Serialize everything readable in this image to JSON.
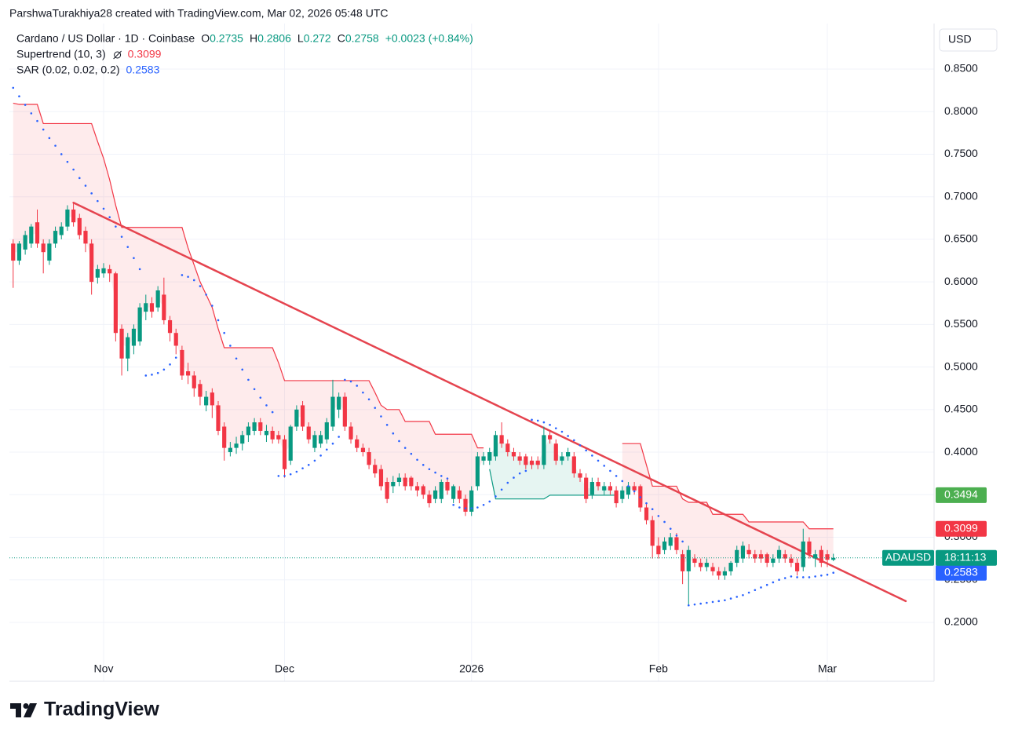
{
  "header": {
    "attribution": "ParshwaTurakhiya28 created with TradingView.com, Mar 02, 2026 05:48 UTC"
  },
  "brand": "TradingView",
  "chart_data": {
    "type": "candlestick",
    "currency": "USD",
    "legend": {
      "symbol": "Cardano / US Dollar · 1D · Coinbase",
      "ohlc": [
        {
          "label": "O",
          "value": 0.2735
        },
        {
          "label": "H",
          "value": 0.2806
        },
        {
          "label": "L",
          "value": 0.272
        },
        {
          "label": "C",
          "value": 0.2758
        }
      ],
      "change": "+0.0023 (+0.84%)",
      "value_color": "#089981"
    },
    "up_color": "#089981",
    "down_color": "#f23645",
    "xlim": [
      -0.62,
      152.7
    ],
    "xticks": [
      {
        "value": 15,
        "label": "Nov"
      },
      {
        "value": 45,
        "label": "Dec"
      },
      {
        "value": 76,
        "label": "2026"
      },
      {
        "value": 107,
        "label": "Feb"
      },
      {
        "value": 135,
        "label": "Mar"
      }
    ],
    "ylim": [
      0.1308,
      0.9035
    ],
    "yticks": [
      {
        "value": 0.2,
        "label": "0.2000"
      },
      {
        "value": 0.25,
        "label": "0.2500"
      },
      {
        "value": 0.3,
        "label": "0.3000"
      },
      {
        "value": 0.35,
        "label": "0.3500"
      },
      {
        "value": 0.4,
        "label": "0.4000"
      },
      {
        "value": 0.45,
        "label": "0.4500"
      },
      {
        "value": 0.5,
        "label": "0.5000"
      },
      {
        "value": 0.55,
        "label": "0.5500"
      },
      {
        "value": 0.6,
        "label": "0.6000"
      },
      {
        "value": 0.65,
        "label": "0.6500"
      },
      {
        "value": 0.7,
        "label": "0.7000"
      },
      {
        "value": 0.75,
        "label": "0.7500"
      },
      {
        "value": 0.8,
        "label": "0.8000"
      },
      {
        "value": 0.85,
        "label": "0.8500"
      }
    ],
    "grid": true,
    "open": [
      0.645,
      0.625,
      0.638,
      0.645,
      0.67,
      0.645,
      0.625,
      0.645,
      0.655,
      0.665,
      0.685,
      0.675,
      0.66,
      0.645,
      0.605,
      0.61,
      0.615,
      0.61,
      0.545,
      0.51,
      0.525,
      0.53,
      0.565,
      0.575,
      0.57,
      0.585,
      0.555,
      0.54,
      0.52,
      0.495,
      0.49,
      0.48,
      0.455,
      0.47,
      0.455,
      0.43,
      0.4,
      0.405,
      0.41,
      0.42,
      0.425,
      0.435,
      0.42,
      0.425,
      0.42,
      0.415,
      0.39,
      0.43,
      0.455,
      0.43,
      0.405,
      0.41,
      0.415,
      0.43,
      0.45,
      0.465,
      0.43,
      0.415,
      0.405,
      0.4,
      0.385,
      0.38,
      0.365,
      0.36,
      0.365,
      0.37,
      0.37,
      0.36,
      0.36,
      0.35,
      0.345,
      0.345,
      0.365,
      0.345,
      0.355,
      0.345,
      0.33,
      0.36,
      0.39,
      0.39,
      0.395,
      0.42,
      0.41,
      0.4,
      0.395,
      0.395,
      0.39,
      0.39,
      0.385,
      0.42,
      0.41,
      0.39,
      0.395,
      0.395,
      0.375,
      0.37,
      0.35,
      0.365,
      0.355,
      0.36,
      0.355,
      0.345,
      0.35,
      0.36,
      0.36,
      0.335,
      0.32,
      0.29,
      0.285,
      0.29,
      0.3,
      0.28,
      0.26,
      0.275,
      0.27,
      0.265,
      0.265,
      0.26,
      0.255,
      0.26,
      0.27,
      0.275,
      0.285,
      0.28,
      0.28,
      0.28,
      0.27,
      0.275,
      0.28,
      0.275,
      0.27,
      0.265,
      0.295,
      0.275,
      0.285,
      0.28,
      0.2735
    ],
    "high": [
      0.65,
      0.648,
      0.66,
      0.668,
      0.685,
      0.65,
      0.65,
      0.665,
      0.67,
      0.69,
      0.692,
      0.68,
      0.665,
      0.65,
      0.62,
      0.622,
      0.62,
      0.612,
      0.55,
      0.54,
      0.55,
      0.575,
      0.585,
      0.582,
      0.595,
      0.605,
      0.56,
      0.545,
      0.525,
      0.505,
      0.495,
      0.485,
      0.472,
      0.475,
      0.46,
      0.435,
      0.412,
      0.418,
      0.425,
      0.435,
      0.44,
      0.44,
      0.432,
      0.43,
      0.425,
      0.42,
      0.432,
      0.455,
      0.46,
      0.435,
      0.425,
      0.425,
      0.44,
      0.485,
      0.47,
      0.47,
      0.435,
      0.42,
      0.41,
      0.405,
      0.392,
      0.385,
      0.37,
      0.372,
      0.375,
      0.375,
      0.372,
      0.365,
      0.362,
      0.355,
      0.36,
      0.368,
      0.37,
      0.362,
      0.36,
      0.35,
      0.36,
      0.4,
      0.4,
      0.405,
      0.425,
      0.435,
      0.415,
      0.405,
      0.4,
      0.398,
      0.395,
      0.395,
      0.43,
      0.425,
      0.415,
      0.4,
      0.405,
      0.4,
      0.38,
      0.375,
      0.37,
      0.37,
      0.365,
      0.365,
      0.36,
      0.36,
      0.365,
      0.365,
      0.362,
      0.34,
      0.325,
      0.3,
      0.3,
      0.305,
      0.305,
      0.285,
      0.29,
      0.28,
      0.275,
      0.275,
      0.27,
      0.265,
      0.265,
      0.272,
      0.29,
      0.295,
      0.292,
      0.285,
      0.285,
      0.282,
      0.28,
      0.29,
      0.285,
      0.28,
      0.275,
      0.31,
      0.3,
      0.285,
      0.29,
      0.285,
      0.2806
    ],
    "low": [
      0.593,
      0.62,
      0.632,
      0.64,
      0.64,
      0.61,
      0.62,
      0.64,
      0.65,
      0.66,
      0.665,
      0.65,
      0.635,
      0.585,
      0.598,
      0.605,
      0.6,
      0.53,
      0.49,
      0.495,
      0.515,
      0.525,
      0.555,
      0.558,
      0.565,
      0.55,
      0.53,
      0.515,
      0.485,
      0.48,
      0.465,
      0.455,
      0.448,
      0.44,
      0.42,
      0.39,
      0.395,
      0.398,
      0.402,
      0.412,
      0.42,
      0.42,
      0.412,
      0.41,
      0.41,
      0.37,
      0.385,
      0.425,
      0.425,
      0.41,
      0.4,
      0.405,
      0.41,
      0.425,
      0.44,
      0.425,
      0.41,
      0.4,
      0.395,
      0.38,
      0.37,
      0.355,
      0.34,
      0.352,
      0.36,
      0.355,
      0.355,
      0.348,
      0.345,
      0.335,
      0.34,
      0.34,
      0.35,
      0.34,
      0.34,
      0.325,
      0.325,
      0.355,
      0.385,
      0.385,
      0.39,
      0.405,
      0.395,
      0.39,
      0.385,
      0.38,
      0.38,
      0.38,
      0.38,
      0.41,
      0.385,
      0.385,
      0.39,
      0.37,
      0.365,
      0.34,
      0.345,
      0.355,
      0.35,
      0.35,
      0.335,
      0.34,
      0.345,
      0.35,
      0.33,
      0.315,
      0.275,
      0.275,
      0.28,
      0.285,
      0.28,
      0.245,
      0.22,
      0.265,
      0.26,
      0.26,
      0.255,
      0.25,
      0.25,
      0.255,
      0.265,
      0.27,
      0.275,
      0.27,
      0.27,
      0.265,
      0.265,
      0.27,
      0.27,
      0.265,
      0.255,
      0.26,
      0.275,
      0.265,
      0.265,
      0.265,
      0.272
    ],
    "close": [
      0.625,
      0.645,
      0.655,
      0.665,
      0.645,
      0.635,
      0.645,
      0.66,
      0.665,
      0.685,
      0.67,
      0.655,
      0.645,
      0.6,
      0.615,
      0.616,
      0.61,
      0.54,
      0.51,
      0.535,
      0.545,
      0.57,
      0.575,
      0.565,
      0.59,
      0.555,
      0.54,
      0.525,
      0.49,
      0.49,
      0.475,
      0.465,
      0.465,
      0.455,
      0.425,
      0.405,
      0.405,
      0.41,
      0.42,
      0.43,
      0.435,
      0.425,
      0.425,
      0.415,
      0.415,
      0.38,
      0.43,
      0.45,
      0.43,
      0.415,
      0.42,
      0.42,
      0.435,
      0.465,
      0.465,
      0.43,
      0.415,
      0.405,
      0.4,
      0.385,
      0.375,
      0.36,
      0.345,
      0.365,
      0.37,
      0.36,
      0.36,
      0.355,
      0.35,
      0.34,
      0.355,
      0.365,
      0.355,
      0.36,
      0.345,
      0.33,
      0.355,
      0.395,
      0.395,
      0.4,
      0.42,
      0.41,
      0.4,
      0.395,
      0.39,
      0.385,
      0.385,
      0.385,
      0.42,
      0.415,
      0.39,
      0.395,
      0.4,
      0.375,
      0.37,
      0.345,
      0.365,
      0.36,
      0.36,
      0.355,
      0.34,
      0.355,
      0.36,
      0.355,
      0.335,
      0.32,
      0.29,
      0.28,
      0.295,
      0.3,
      0.285,
      0.26,
      0.285,
      0.27,
      0.265,
      0.27,
      0.26,
      0.255,
      0.26,
      0.27,
      0.285,
      0.29,
      0.28,
      0.275,
      0.275,
      0.27,
      0.275,
      0.285,
      0.275,
      0.27,
      0.26,
      0.295,
      0.28,
      0.28,
      0.27,
      0.2735,
      0.2758
    ],
    "indicators": [
      {
        "name": "Supertrend (10, 3)",
        "value": 0.3099,
        "color": "#f23645",
        "up_color": "#089981",
        "down": [
          0.81,
          0.8085,
          0.8085,
          0.8085,
          0.8085,
          0.786,
          0.786,
          0.786,
          0.786,
          0.786,
          0.786,
          0.786,
          0.786,
          0.786,
          0.765,
          0.745,
          0.72,
          0.69,
          0.664,
          0.664,
          0.664,
          0.664,
          0.664,
          0.664,
          0.664,
          0.664,
          0.664,
          0.664,
          0.664,
          0.64,
          0.62,
          0.6,
          0.585,
          0.57,
          0.545,
          0.5227,
          0.5227,
          0.5227,
          0.5227,
          0.5227,
          0.5227,
          0.5227,
          0.5227,
          0.5227,
          0.505,
          0.484,
          0.484,
          0.484,
          0.484,
          0.484,
          0.484,
          0.484,
          0.484,
          0.484,
          0.484,
          0.484,
          0.484,
          0.484,
          0.484,
          0.484,
          0.47,
          0.455,
          0.45,
          0.45,
          0.45,
          0.436,
          0.436,
          0.436,
          0.436,
          0.436,
          0.421,
          0.421,
          0.421,
          0.421,
          0.421,
          0.421,
          0.421,
          0.405,
          0.405,
          null,
          null,
          null,
          null,
          null,
          null,
          null,
          null,
          null,
          null,
          null,
          null,
          null,
          null,
          null,
          null,
          null,
          null,
          null,
          null,
          null,
          null,
          0.41,
          0.41,
          0.41,
          0.41,
          0.385,
          0.36,
          0.36,
          0.36,
          0.36,
          0.36,
          0.345,
          0.341,
          0.341,
          0.341,
          0.341,
          0.327,
          0.327,
          0.327,
          0.327,
          0.327,
          0.327,
          0.318,
          0.318,
          0.318,
          0.318,
          0.318,
          0.318,
          0.318,
          0.318,
          0.318,
          0.318,
          0.3099,
          0.3099,
          0.3099,
          0.3099,
          0.3099
        ],
        "up": [
          null,
          null,
          null,
          null,
          null,
          null,
          null,
          null,
          null,
          null,
          null,
          null,
          null,
          null,
          null,
          null,
          null,
          null,
          null,
          null,
          null,
          null,
          null,
          null,
          null,
          null,
          null,
          null,
          null,
          null,
          null,
          null,
          null,
          null,
          null,
          null,
          null,
          null,
          null,
          null,
          null,
          null,
          null,
          null,
          null,
          null,
          null,
          null,
          null,
          null,
          null,
          null,
          null,
          null,
          null,
          null,
          null,
          null,
          null,
          null,
          null,
          null,
          null,
          null,
          null,
          null,
          null,
          null,
          null,
          null,
          null,
          null,
          null,
          null,
          null,
          null,
          null,
          null,
          null,
          0.38,
          0.345,
          0.345,
          0.345,
          0.345,
          0.345,
          0.345,
          0.345,
          0.345,
          0.345,
          0.3494,
          0.3494,
          0.3494,
          0.3494,
          0.3494,
          0.3494,
          0.3494,
          0.3494,
          0.3494,
          0.3494,
          0.3494,
          0.3494,
          null,
          null,
          null,
          null,
          null,
          null,
          null,
          null,
          null,
          null,
          null,
          null,
          null,
          null,
          null,
          null,
          null,
          null,
          null,
          null,
          null,
          null,
          null,
          null,
          null,
          null,
          null,
          null,
          null,
          null,
          null,
          null,
          null,
          null,
          null,
          null
        ]
      },
      {
        "name": "SAR (0.02, 0.02, 0.2)",
        "value": 0.2583,
        "color": "#2962ff",
        "values": [
          0.828,
          0.818,
          0.808,
          0.798,
          0.789,
          0.779,
          0.769,
          0.76,
          0.75,
          0.741,
          0.732,
          0.722,
          0.713,
          0.704,
          0.695,
          0.686,
          0.676,
          0.665,
          0.653,
          0.641,
          0.628,
          0.615,
          0.49,
          0.491,
          0.493,
          0.497,
          0.503,
          0.511,
          0.608,
          0.606,
          0.602,
          0.595,
          0.585,
          0.572,
          0.555,
          0.54,
          0.525,
          0.51,
          0.497,
          0.485,
          0.474,
          0.464,
          0.455,
          0.447,
          0.372,
          0.372,
          0.374,
          0.377,
          0.381,
          0.385,
          0.39,
          0.396,
          0.403,
          0.41,
          0.418,
          0.485,
          0.483,
          0.478,
          0.47,
          0.462,
          0.452,
          0.442,
          0.432,
          0.422,
          0.413,
          0.405,
          0.398,
          0.391,
          0.385,
          0.38,
          0.376,
          0.372,
          0.369,
          0.338,
          0.335,
          0.334,
          0.334,
          0.335,
          0.338,
          0.342,
          0.348,
          0.356,
          0.364,
          0.37,
          0.375,
          0.378,
          0.438,
          0.437,
          0.435,
          0.432,
          0.428,
          0.424,
          0.419,
          0.414,
          0.408,
          0.402,
          0.396,
          0.39,
          0.384,
          0.378,
          0.372,
          0.366,
          0.36,
          0.354,
          0.347,
          0.34,
          0.333,
          0.325,
          0.318,
          0.31,
          0.302,
          0.295,
          0.22,
          0.221,
          0.222,
          0.223,
          0.224,
          0.225,
          0.226,
          0.228,
          0.23,
          0.232,
          0.235,
          0.238,
          0.241,
          0.244,
          0.247,
          0.25,
          0.252,
          0.254,
          0.253,
          0.253,
          0.253,
          0.254,
          0.255,
          0.256,
          0.2583
        ]
      }
    ],
    "trend_line": {
      "x": [
        10,
        148
      ],
      "values": [
        0.693,
        0.225
      ],
      "color": "#e5444f"
    },
    "price_labels": [
      {
        "value": 0.3494,
        "color": "#4caf50"
      },
      {
        "value": 0.3099,
        "color": "#f23645"
      },
      {
        "value": 0.2583,
        "color": "#2962ff"
      }
    ],
    "last_price": {
      "symbol": "ADAUSD",
      "countdown": "18:11:13",
      "color": "#089981"
    }
  }
}
